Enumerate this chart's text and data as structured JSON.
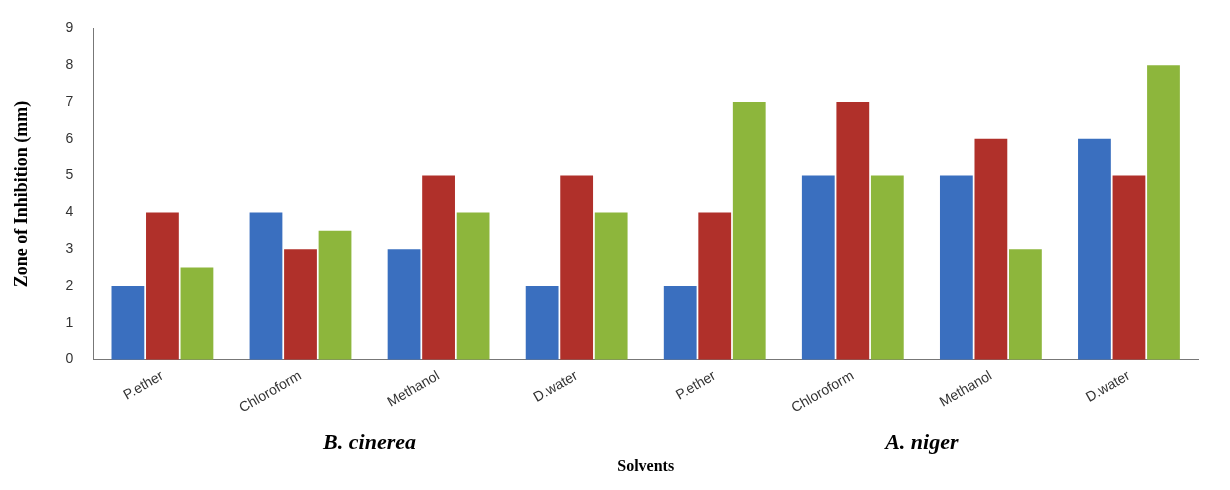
{
  "chart_data": {
    "type": "bar",
    "xlabel": "Solvents",
    "ylabel": "Zone of Inhibition (mm)",
    "categories": [
      "P.ether",
      "Chloroform",
      "Methanol",
      "D.water",
      "P.ether",
      "Chloroform",
      "Methanol",
      "D.water"
    ],
    "series": [
      {
        "color": "#3a6fbf",
        "values": [
          2,
          4,
          3,
          2,
          2,
          5,
          5,
          6
        ]
      },
      {
        "color": "#b0302a",
        "values": [
          4,
          3,
          5,
          5,
          4,
          7,
          6,
          5
        ]
      },
      {
        "color": "#8db63c",
        "values": [
          2.5,
          3.5,
          4,
          4,
          7,
          5,
          3,
          8
        ]
      }
    ],
    "ylim": [
      0,
      9
    ],
    "yticks": [
      0,
      1,
      2,
      3,
      4,
      5,
      6,
      7,
      8,
      9
    ],
    "grid": false,
    "legend": false,
    "annotations": [
      "B. cinerea",
      "A. niger"
    ]
  }
}
